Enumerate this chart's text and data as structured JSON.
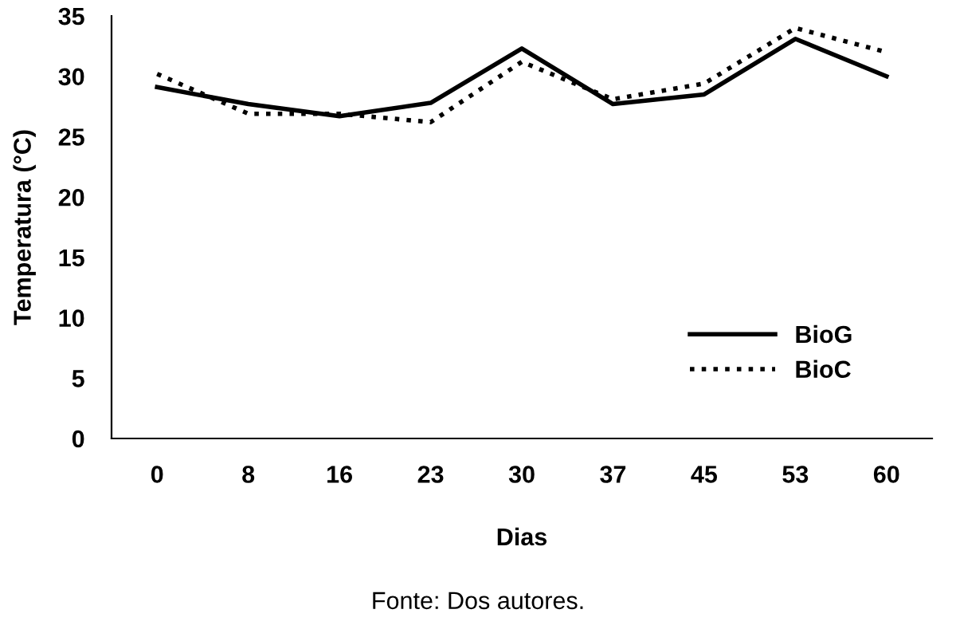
{
  "chart_data": {
    "type": "line",
    "xlabel": "Dias",
    "ylabel": "Temperatura (°C)",
    "categories": [
      "0",
      "8",
      "16",
      "23",
      "30",
      "37",
      "45",
      "53",
      "60"
    ],
    "series": [
      {
        "name": "BioG",
        "color": "#000000",
        "line_style": "solid",
        "values": [
          29.1,
          27.7,
          26.7,
          27.8,
          32.3,
          27.7,
          28.5,
          33.1,
          30.0
        ]
      },
      {
        "name": "BioC",
        "color": "#000000",
        "line_style": "dotted",
        "values": [
          30.2,
          26.9,
          26.9,
          26.2,
          31.2,
          28.1,
          29.4,
          34.0,
          32.0
        ]
      }
    ],
    "ylim": [
      0,
      35
    ],
    "yticks": [
      0,
      5,
      10,
      15,
      20,
      25,
      30,
      35
    ],
    "grid": false,
    "legend": "bottom right",
    "marker": "none",
    "annotations": [
      "Fonte: Dos autores."
    ]
  }
}
